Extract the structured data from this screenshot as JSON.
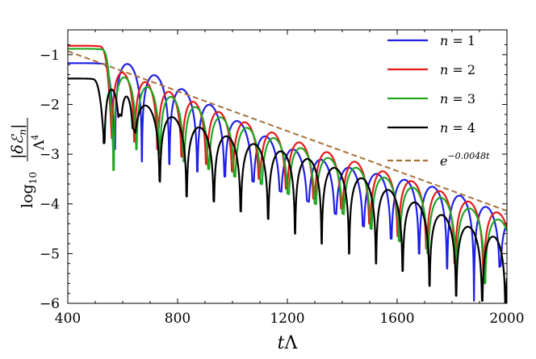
{
  "chart_data": {
    "type": "line",
    "xlabel": "tΛ",
    "ylabel": "log10 |δℰn| / Λ⁴",
    "xlim": [
      400,
      2000
    ],
    "ylim": [
      -6,
      -0.5
    ],
    "x_ticks": [
      "400",
      "800",
      "1200",
      "1600",
      "2000"
    ],
    "x_tick_values": [
      400,
      800,
      1200,
      1600,
      2000
    ],
    "y_ticks": [
      "−1",
      "−2",
      "−3",
      "−4",
      "−5",
      "−6"
    ],
    "y_tick_values": [
      -1,
      -2,
      -3,
      -4,
      -5,
      -6
    ],
    "legend_position": "top-right",
    "series": [
      {
        "name": "n = 1",
        "legend_var": "n",
        "legend_val": "1",
        "color": "#1f1fe6",
        "style": "solid",
        "initial_value": -1.17,
        "transition_end": 570,
        "env_decay_per_unit": 0.00219,
        "first_peak": -1.38,
        "first_peak_t": 617,
        "mod_amp": 0.2,
        "mod_period": 1200,
        "mod_phase_t": 1850,
        "minima_t": [
          572,
          670,
          770,
          872,
          972,
          1075,
          1175,
          1275,
          1375,
          1477,
          1578,
          1680,
          1782,
          1880,
          1975
        ],
        "minima_depth": [
          -2.9,
          -3.15,
          -3.2,
          -3.35,
          -3.45,
          -3.55,
          -3.75,
          -3.95,
          -4.2,
          -4.45,
          -4.7,
          -5.0,
          -5.3,
          -5.95,
          -5.25
        ]
      },
      {
        "name": "n = 2",
        "legend_var": "n",
        "legend_val": "2",
        "color": "#e61a1a",
        "style": "solid",
        "initial_value": -0.82,
        "transition_end": 560,
        "env_decay_per_unit": 0.00208,
        "first_peak": -1.38,
        "first_peak_t": 600,
        "mod_amp": 0.05,
        "mod_period": 1600,
        "mod_phase_t": 1900,
        "minima_t": [
          560,
          643,
          727,
          815,
          905,
          1000,
          1098,
          1197,
          1297,
          1398,
          1500,
          1603,
          1707,
          1810,
          1915
        ],
        "minima_depth": [
          -2.6,
          -2.75,
          -2.9,
          -3.05,
          -3.2,
          -3.35,
          -3.5,
          -3.7,
          -3.9,
          -4.1,
          -4.4,
          -4.65,
          -4.9,
          -5.2,
          -5.5
        ]
      },
      {
        "name": "n = 3",
        "legend_var": "n",
        "legend_val": "3",
        "color": "#22a622",
        "style": "solid",
        "initial_value": -0.88,
        "transition_end": 565,
        "env_decay_per_unit": 0.00212,
        "first_peak": -1.5,
        "first_peak_t": 620,
        "mod_amp": 0.05,
        "mod_period": 1600,
        "mod_phase_t": 1900,
        "minima_t": [
          568,
          650,
          735,
          823,
          913,
          1008,
          1105,
          1203,
          1302,
          1403,
          1505,
          1608,
          1712,
          1815,
          1920
        ],
        "minima_depth": [
          -3.32,
          -2.9,
          -3.0,
          -3.15,
          -3.3,
          -3.45,
          -3.6,
          -3.8,
          -4.0,
          -4.2,
          -4.5,
          -4.75,
          -5.0,
          -5.3,
          -5.6
        ]
      },
      {
        "name": "n = 4",
        "legend_var": "n",
        "legend_val": "4",
        "color": "#000000",
        "style": "solid",
        "initial_value": -1.48,
        "transition_end": 530,
        "env_decay_per_unit": 0.00205,
        "first_peak": -1.83,
        "first_peak_t": 620,
        "mod_amp": 0.1,
        "mod_period": 1100,
        "mod_phase_t": 1400,
        "minima_t": [
          533,
          590,
          640,
          735,
          833,
          932,
          1030,
          1130,
          1228,
          1325,
          1425,
          1523,
          1620,
          1718,
          1815,
          1910,
          1995
        ],
        "minima_depth": [
          -2.78,
          -2.2,
          -2.5,
          -3.55,
          -3.85,
          -3.95,
          -4.15,
          -4.3,
          -4.6,
          -4.8,
          -5.0,
          -5.2,
          -5.35,
          -5.65,
          -5.85,
          -5.95,
          -6.0
        ]
      },
      {
        "name": "e^{−0.0048t}",
        "legend_text": "e",
        "legend_sup": "−0.0048t",
        "color": "#a8703a",
        "style": "dashed",
        "x": [
          400,
          2000
        ],
        "y": [
          -0.93,
          -4.14
        ]
      }
    ]
  }
}
